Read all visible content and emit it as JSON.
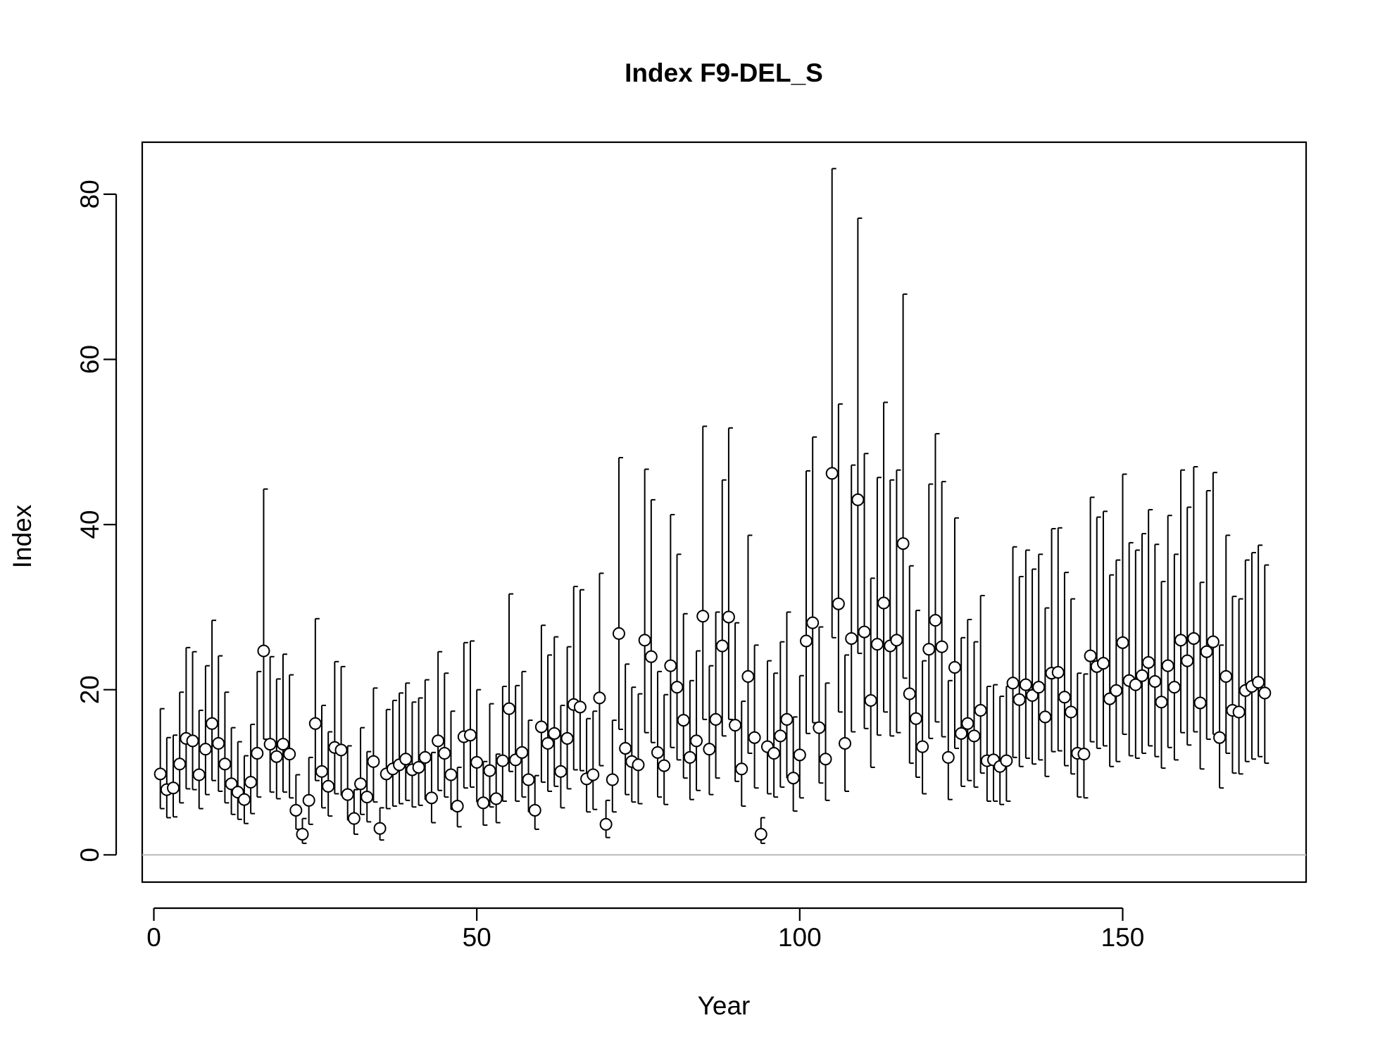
{
  "chart_data": {
    "type": "scatter",
    "title": "Index F9-DEL_S",
    "xlabel": "Year",
    "ylabel": "Index",
    "xlim": [
      -1.8,
      178.4
    ],
    "ylim": [
      -3.3,
      86.3
    ],
    "x_ticks": [
      0,
      50,
      100,
      150
    ],
    "y_ticks": [
      0,
      20,
      40,
      60,
      80
    ],
    "reference_line": {
      "y": 0,
      "color": "#bdbdbd"
    },
    "grid": false,
    "legend": "none",
    "point_color": "#ffffff",
    "point_edge_color": "#000000",
    "y": [
      9.8,
      7.9,
      8.1,
      11.0,
      14.1,
      13.8,
      9.7,
      12.8,
      15.9,
      13.5,
      11.0,
      8.6,
      7.6,
      6.7,
      8.8,
      12.3,
      24.7,
      13.4,
      11.9,
      13.4,
      12.2,
      5.4,
      2.5,
      6.6,
      15.9,
      10.1,
      8.3,
      13.0,
      12.7,
      7.3,
      4.4,
      8.6,
      7.0,
      11.3,
      3.2,
      9.8,
      10.4,
      10.9,
      11.6,
      10.3,
      10.6,
      11.8,
      6.9,
      13.8,
      12.3,
      9.7,
      5.9,
      14.3,
      14.5,
      11.2,
      6.3,
      10.2,
      6.8,
      11.4,
      17.7,
      11.5,
      12.4,
      9.1,
      5.4,
      15.5,
      13.5,
      14.7,
      10.1,
      14.1,
      18.2,
      17.9,
      9.2,
      9.7,
      19.0,
      3.7,
      9.1,
      26.8,
      12.9,
      11.3,
      10.9,
      26.0,
      24.0,
      12.4,
      10.8,
      22.9,
      20.3,
      16.3,
      11.8,
      13.8,
      28.9,
      12.8,
      16.4,
      25.3,
      28.8,
      15.7,
      10.4,
      21.6,
      14.2,
      2.5,
      13.1,
      12.3,
      14.4,
      16.4,
      9.3,
      12.1,
      25.9,
      28.1,
      15.4,
      11.6,
      46.2,
      30.4,
      13.5,
      26.2,
      43.0,
      27.0,
      18.7,
      25.5,
      30.5,
      25.3,
      26.0,
      37.7,
      19.5,
      16.5,
      13.1,
      24.9,
      28.4,
      25.2,
      11.8,
      22.7,
      14.7,
      15.9,
      14.4,
      17.5,
      11.4,
      11.5,
      10.7,
      11.4,
      20.8,
      18.8,
      20.6,
      19.3,
      20.3,
      16.7,
      22.0,
      22.1,
      19.1,
      17.3,
      12.3,
      12.2,
      24.1,
      22.8,
      23.2,
      18.9,
      19.9,
      25.7,
      21.1,
      20.6,
      21.7,
      23.3,
      21.0,
      18.5,
      22.9,
      20.3,
      26.0,
      23.5,
      26.2,
      18.4,
      24.6,
      25.8,
      14.2,
      21.6,
      17.5,
      17.3,
      19.9,
      20.4,
      20.9,
      19.6
    ],
    "lower": [
      5.6,
      4.5,
      4.6,
      6.3,
      8.0,
      7.9,
      5.6,
      7.3,
      9.0,
      7.7,
      6.3,
      4.9,
      4.3,
      3.8,
      5.0,
      7.0,
      14.0,
      7.6,
      6.8,
      7.6,
      6.9,
      3.1,
      1.4,
      3.7,
      9.0,
      5.7,
      4.7,
      7.4,
      7.2,
      4.2,
      2.5,
      4.9,
      4.0,
      6.4,
      1.8,
      5.6,
      5.9,
      6.2,
      6.6,
      5.8,
      6.0,
      6.7,
      3.9,
      7.8,
      7.0,
      5.5,
      3.4,
      8.1,
      8.2,
      6.4,
      3.6,
      5.8,
      3.9,
      6.5,
      10.1,
      6.5,
      7.0,
      5.2,
      3.1,
      8.8,
      7.7,
      8.3,
      5.7,
      8.0,
      10.3,
      10.2,
      5.2,
      5.5,
      10.8,
      2.1,
      5.2,
      15.2,
      7.3,
      6.4,
      6.2,
      14.8,
      13.6,
      7.0,
      6.1,
      13.0,
      11.5,
      9.3,
      6.7,
      7.8,
      16.4,
      7.3,
      9.3,
      14.4,
      16.4,
      8.9,
      5.9,
      12.3,
      8.1,
      1.4,
      7.4,
      7.0,
      8.2,
      9.3,
      5.3,
      6.9,
      14.7,
      16.0,
      8.7,
      6.6,
      26.3,
      17.3,
      7.7,
      14.9,
      24.4,
      15.3,
      10.6,
      14.5,
      17.3,
      14.4,
      14.8,
      21.4,
      11.1,
      9.4,
      7.4,
      14.1,
      16.1,
      14.3,
      6.7,
      12.9,
      8.3,
      9.0,
      8.2,
      9.9,
      6.5,
      6.5,
      6.1,
      6.5,
      11.8,
      10.7,
      11.7,
      11.0,
      11.5,
      9.5,
      12.5,
      12.6,
      10.8,
      9.8,
      7.0,
      6.9,
      13.7,
      12.9,
      13.2,
      10.7,
      11.3,
      14.6,
      12.0,
      11.7,
      12.3,
      13.2,
      11.9,
      10.5,
      13.0,
      11.5,
      14.8,
      13.3,
      14.9,
      10.4,
      14.0,
      14.6,
      8.1,
      12.3,
      9.9,
      9.8,
      11.3,
      11.6,
      11.9,
      11.1
    ],
    "upper": [
      17.7,
      14.2,
      14.5,
      19.7,
      25.1,
      24.6,
      17.5,
      22.9,
      28.4,
      24.1,
      19.7,
      15.4,
      13.7,
      12.0,
      15.8,
      22.2,
      44.3,
      24.0,
      21.3,
      24.3,
      21.8,
      9.7,
      4.4,
      11.8,
      28.6,
      18.1,
      14.9,
      23.4,
      22.8,
      13.2,
      7.9,
      15.4,
      12.5,
      20.2,
      5.7,
      17.6,
      18.7,
      19.6,
      20.8,
      18.5,
      19.0,
      21.2,
      12.4,
      24.6,
      22.0,
      17.4,
      10.6,
      25.7,
      25.9,
      20.0,
      11.3,
      18.3,
      12.2,
      20.4,
      31.6,
      20.5,
      22.2,
      16.3,
      9.6,
      27.8,
      24.2,
      26.4,
      18.1,
      25.2,
      32.5,
      32.1,
      16.5,
      17.4,
      34.1,
      6.6,
      16.3,
      48.1,
      23.1,
      20.3,
      19.5,
      46.7,
      43.0,
      22.2,
      19.4,
      41.2,
      36.4,
      29.2,
      21.1,
      24.7,
      51.9,
      22.9,
      29.4,
      45.4,
      51.7,
      28.1,
      18.6,
      38.7,
      25.4,
      4.5,
      23.5,
      22.0,
      25.8,
      29.4,
      16.7,
      21.7,
      46.5,
      50.6,
      27.6,
      20.8,
      83.1,
      54.6,
      24.2,
      47.2,
      77.1,
      48.6,
      33.5,
      45.7,
      54.8,
      45.4,
      46.6,
      67.9,
      35.0,
      29.6,
      23.5,
      44.9,
      51.0,
      45.2,
      21.1,
      40.8,
      26.3,
      28.5,
      25.8,
      31.4,
      20.4,
      20.6,
      19.2,
      20.4,
      37.3,
      33.7,
      36.9,
      34.6,
      36.4,
      29.9,
      39.5,
      39.6,
      34.2,
      31.0,
      22.0,
      21.9,
      43.3,
      40.9,
      41.6,
      33.9,
      35.7,
      46.1,
      37.8,
      36.9,
      38.9,
      41.8,
      37.6,
      33.1,
      41.1,
      36.4,
      46.6,
      42.1,
      47.0,
      33.0,
      44.1,
      46.3,
      25.4,
      38.7,
      31.3,
      31.0,
      35.7,
      36.6,
      37.5,
      35.1
    ]
  }
}
